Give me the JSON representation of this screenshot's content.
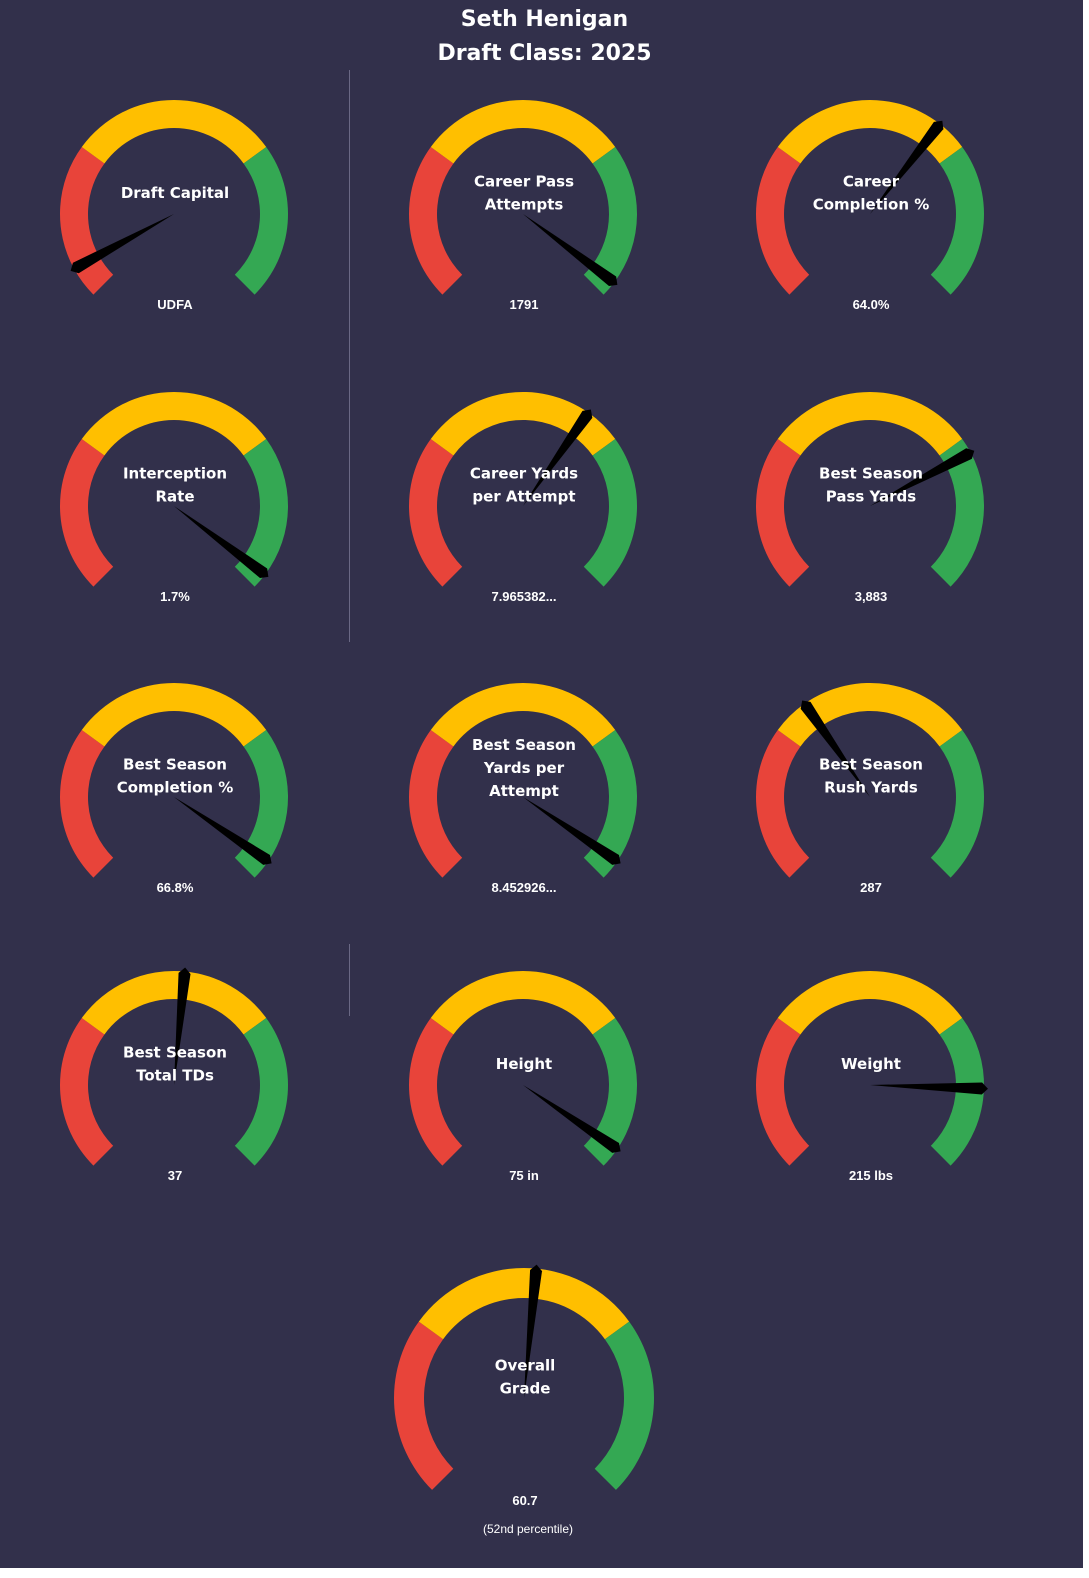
{
  "header": {
    "player_name": "Seth Henigan",
    "draft_class": "Draft Class: 2025"
  },
  "colors": {
    "background": "#32304b",
    "low": "#e8443a",
    "mid": "#ffbf00",
    "high": "#34a853",
    "needle": "#000000"
  },
  "chart_data": [
    {
      "type": "gauge",
      "label_lines": [
        "Draft Capital"
      ],
      "value_text": "UDFA",
      "needle_fraction": 0.06,
      "zones": [
        0.0,
        0.3,
        0.7,
        1.0
      ],
      "arc_fill": 0.06
    },
    {
      "type": "gauge",
      "label_lines": [
        "Career Pass",
        "Attempts"
      ],
      "value_text": "1791",
      "needle_fraction": 0.97,
      "zones": [
        0.0,
        0.3,
        0.7,
        1.0
      ],
      "arc_fill": 0.97
    },
    {
      "type": "gauge",
      "label_lines": [
        "Career",
        "Completion %"
      ],
      "value_text": "64.0%",
      "needle_fraction": 0.64,
      "zones": [
        0.0,
        0.3,
        0.7,
        1.0
      ],
      "arc_fill": 0.64
    },
    {
      "type": "gauge",
      "label_lines": [
        "Interception",
        "Rate"
      ],
      "value_text": "1.7%",
      "needle_fraction": 0.97,
      "zones": [
        0.0,
        0.3,
        0.7,
        1.0
      ],
      "arc_fill": 0.97
    },
    {
      "type": "gauge",
      "label_lines": [
        "Career Yards",
        "per Attempt"
      ],
      "value_text": "7.965382...",
      "needle_fraction": 0.63,
      "zones": [
        0.0,
        0.3,
        0.7,
        1.0
      ],
      "arc_fill": 0.63
    },
    {
      "type": "gauge",
      "label_lines": [
        "Best Season",
        "Pass Yards"
      ],
      "value_text": "3,883",
      "needle_fraction": 0.73,
      "zones": [
        0.0,
        0.3,
        0.7,
        1.0
      ],
      "arc_fill": 0.73
    },
    {
      "type": "gauge",
      "label_lines": [
        "Best Season",
        "Completion %"
      ],
      "value_text": "66.8%",
      "needle_fraction": 0.96,
      "zones": [
        0.0,
        0.3,
        0.7,
        1.0
      ],
      "arc_fill": 0.96
    },
    {
      "type": "gauge",
      "label_lines": [
        "Best Season",
        "Yards per",
        "Attempt"
      ],
      "value_text": "8.452926...",
      "needle_fraction": 0.96,
      "zones": [
        0.0,
        0.3,
        0.7,
        1.0
      ],
      "arc_fill": 0.96
    },
    {
      "type": "gauge",
      "label_lines": [
        "Best Season",
        "Rush Yards"
      ],
      "value_text": "287",
      "needle_fraction": 0.37,
      "zones": [
        0.0,
        0.3,
        0.7,
        1.0
      ],
      "arc_fill": 0.37
    },
    {
      "type": "gauge",
      "label_lines": [
        "Best Season",
        "Total TDs"
      ],
      "value_text": "37",
      "needle_fraction": 0.52,
      "zones": [
        0.0,
        0.3,
        0.7,
        1.0
      ],
      "arc_fill": 0.52
    },
    {
      "type": "gauge",
      "label_lines": [
        "Height"
      ],
      "value_text": "75 in",
      "needle_fraction": 0.96,
      "zones": [
        0.0,
        0.3,
        0.7,
        1.0
      ],
      "arc_fill": 0.96
    },
    {
      "type": "gauge",
      "label_lines": [
        "Weight"
      ],
      "value_text": "215 lbs",
      "needle_fraction": 0.84,
      "zones": [
        0.0,
        0.3,
        0.7,
        1.0
      ],
      "arc_fill": 0.84
    },
    {
      "type": "gauge",
      "label_lines": [
        "Overall",
        "Grade"
      ],
      "value_text": "60.7",
      "sub_text": "(52nd  percentile)",
      "needle_fraction": 0.52,
      "zones": [
        0.0,
        0.3,
        0.7,
        1.0
      ],
      "arc_fill": 1.0
    }
  ]
}
